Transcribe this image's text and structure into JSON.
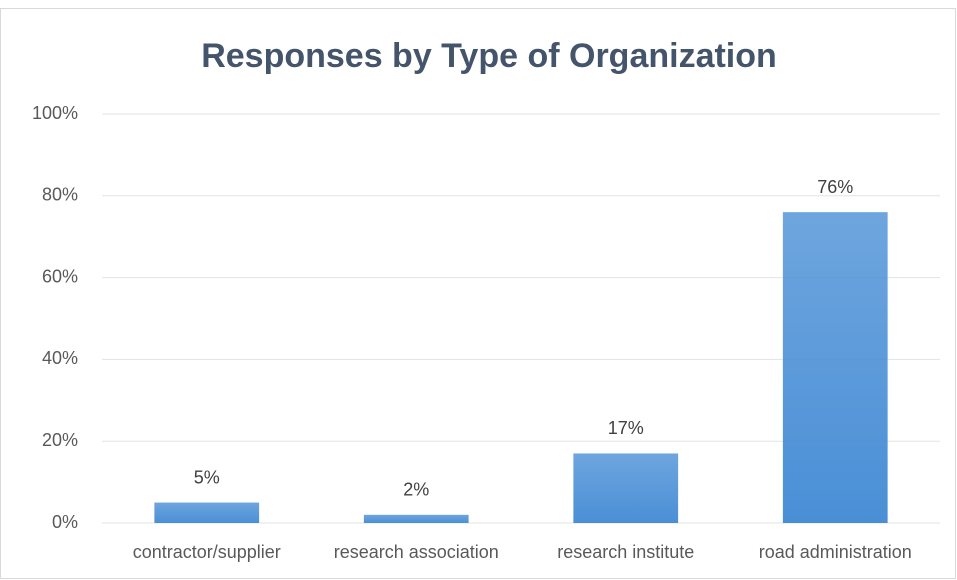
{
  "chart_data": {
    "type": "bar",
    "title": "Responses by Type of Organization",
    "categories": [
      "contractor/supplier",
      "research association",
      "research institute",
      "road administration"
    ],
    "values": [
      5,
      2,
      17,
      76
    ],
    "value_labels": [
      "5%",
      "2%",
      "17%",
      "76%"
    ],
    "color": "#4a8fd6",
    "ylim": [
      0,
      100
    ],
    "yticks": [
      {
        "value": 0,
        "label": "0%"
      },
      {
        "value": 20,
        "label": "20%"
      },
      {
        "value": 40,
        "label": "40%"
      },
      {
        "value": 60,
        "label": "60%"
      },
      {
        "value": 80,
        "label": "80%"
      },
      {
        "value": 100,
        "label": "100%"
      }
    ],
    "grid": true
  }
}
